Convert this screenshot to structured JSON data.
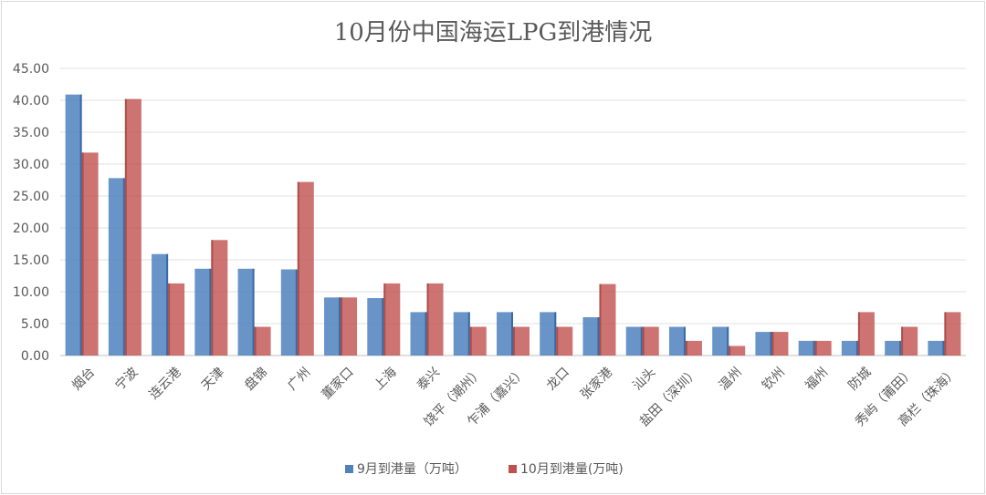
{
  "chart_data": {
    "type": "bar",
    "title": "10月份中国海运LPG到港情况",
    "ylim": [
      0,
      45
    ],
    "yticks": [
      "0.00",
      "5.00",
      "10.00",
      "15.00",
      "20.00",
      "25.00",
      "30.00",
      "35.00",
      "40.00",
      "45.00"
    ],
    "grid": true,
    "legend_position": "bottom",
    "categories": [
      "烟台",
      "宁波",
      "连云港",
      "天津",
      "盘锦",
      "广州",
      "董家口",
      "上海",
      "泰兴",
      "饶平（潮州）",
      "乍浦（嘉兴）",
      "龙口",
      "张家港",
      "汕头",
      "盐田（深圳）",
      "温州",
      "钦州",
      "福州",
      "防城",
      "秀屿（莆田）",
      "高栏（珠海）"
    ],
    "series": [
      {
        "name": "9月到港量（万吨）",
        "color": "#4f81bd",
        "values": [
          40.9,
          27.8,
          15.9,
          13.6,
          13.6,
          13.5,
          9.1,
          9.0,
          6.8,
          6.8,
          6.8,
          6.8,
          6.0,
          4.5,
          4.5,
          4.5,
          3.7,
          2.3,
          2.3,
          2.3,
          2.3
        ]
      },
      {
        "name": "10月到港量(万吨)",
        "color": "#c0504d",
        "values": [
          31.8,
          40.2,
          11.3,
          18.1,
          4.5,
          27.2,
          9.1,
          11.3,
          11.3,
          4.5,
          4.5,
          4.5,
          11.2,
          4.5,
          2.3,
          1.5,
          3.7,
          2.3,
          6.8,
          4.5,
          6.8
        ]
      }
    ]
  }
}
